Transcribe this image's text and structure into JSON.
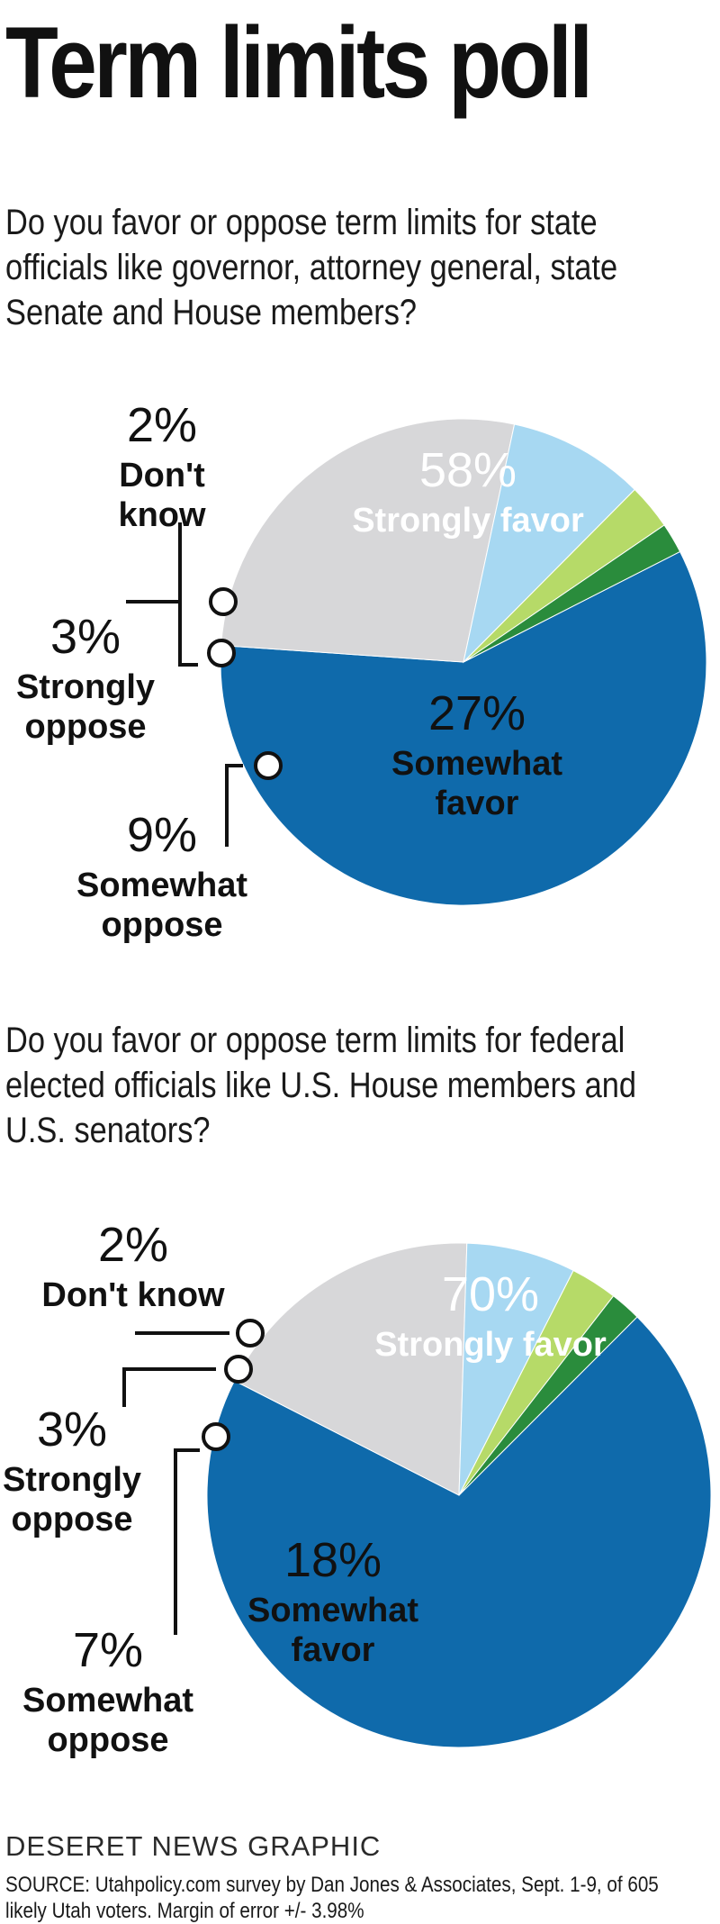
{
  "title": "Term limits poll",
  "colors": {
    "strongly_favor": "#0f6aab",
    "somewhat_favor": "#d7d7d9",
    "somewhat_oppose": "#a7d8f2",
    "strongly_oppose": "#b6da68",
    "dont_know": "#2a8c3c"
  },
  "chart_data": [
    {
      "type": "pie",
      "question": "Do you favor or oppose term limits for state officials like governor, attorney general, state Senate and House members?",
      "categories": [
        "Strongly favor",
        "Somewhat favor",
        "Somewhat oppose",
        "Strongly oppose",
        "Don't know"
      ],
      "values": [
        58,
        27,
        9,
        3,
        2
      ],
      "labels": [
        {
          "pct": "58%",
          "lines": [
            "Strongly favor"
          ]
        },
        {
          "pct": "27%",
          "lines": [
            "Somewhat",
            "favor"
          ]
        },
        {
          "pct": "9%",
          "lines": [
            "Somewhat",
            "oppose"
          ]
        },
        {
          "pct": "3%",
          "lines": [
            "Strongly",
            "oppose"
          ]
        },
        {
          "pct": "2%",
          "lines": [
            "Don't",
            "know"
          ]
        }
      ]
    },
    {
      "type": "pie",
      "question": "Do you favor or oppose term limits for federal elected officials like U.S. House members and U.S. senators?",
      "categories": [
        "Strongly favor",
        "Somewhat favor",
        "Somewhat oppose",
        "Strongly oppose",
        "Don't know"
      ],
      "values": [
        70,
        18,
        7,
        3,
        2
      ],
      "labels": [
        {
          "pct": "70%",
          "lines": [
            "Strongly favor"
          ]
        },
        {
          "pct": "18%",
          "lines": [
            "Somewhat",
            "favor"
          ]
        },
        {
          "pct": "7%",
          "lines": [
            "Somewhat",
            "oppose"
          ]
        },
        {
          "pct": "3%",
          "lines": [
            "Strongly",
            "oppose"
          ]
        },
        {
          "pct": "2%",
          "lines": [
            "Don't know"
          ]
        }
      ]
    }
  ],
  "footer": {
    "credit": "DESERET NEWS GRAPHIC",
    "source": "SOURCE: Utahpolicy.com survey by Dan Jones & Associates, Sept. 1-9, of 605 likely Utah voters. Margin of error +/- 3.98%"
  }
}
